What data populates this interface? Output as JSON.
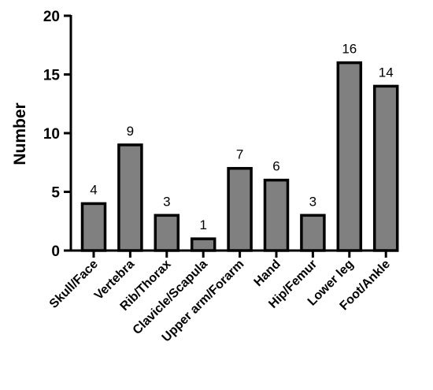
{
  "chart_data": {
    "type": "bar",
    "ylabel": "Number",
    "xlabel": "",
    "ylim": [
      0,
      20
    ],
    "yticks": [
      0,
      5,
      10,
      15,
      20
    ],
    "categories": [
      "Skull/Face",
      "Vertebra",
      "Rib/Thorax",
      "Clavicle/Scapula",
      "Upper arm/Forarm",
      "Hand",
      "Hip/Femur",
      "Lower leg",
      "Foot/Ankle"
    ],
    "values": [
      4,
      9,
      3,
      1,
      7,
      6,
      3,
      16,
      14
    ],
    "bar_color": "#808080",
    "bar_stroke": "#000000",
    "grid": false,
    "legend": "none"
  }
}
